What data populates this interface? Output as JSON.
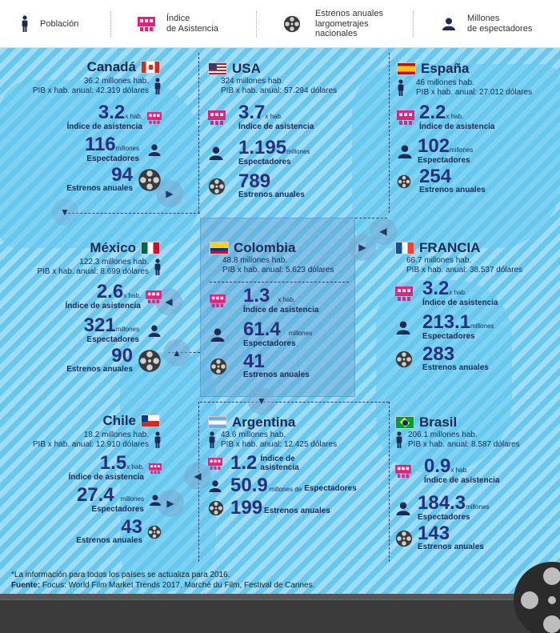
{
  "legend": {
    "population": "Población",
    "attendance_line1": "Índice",
    "attendance_line2": "de Asistencia",
    "releases_line1": "Estrenos anuales",
    "releases_line2": "largometrajes",
    "releases_line3": "nacionales",
    "viewers_line1": "Millones",
    "viewers_line2": "de espectadores"
  },
  "units": {
    "millones": "millones",
    "xhab": "x hab.",
    "indice": "Índice de asistencia",
    "espectadores": "Espectadores",
    "estrenos": "Estrenos anuales"
  },
  "countries": {
    "canada": {
      "name": "Canadá",
      "pop": "36.2 millones hab.",
      "pib": "PIB x hab. anual: 42.319 dólares",
      "att": "3.2",
      "viewers": "116",
      "releases": "94"
    },
    "usa": {
      "name": "USA",
      "pop": "324 millones hab.",
      "pib": "PIB x hab. anual: 57.294 dólares",
      "att": "3.7",
      "viewers": "1.195",
      "releases": "789"
    },
    "espana": {
      "name": "España",
      "pop": "46 millones hab.",
      "pib": "PIB x hab. anual: 27.012 dólares",
      "att": "2.2",
      "viewers": "102",
      "releases": "254"
    },
    "mexico": {
      "name": "México",
      "pop": "122.3 millones hab.",
      "pib": "PIB x hab. anual: 8.699 dólares",
      "att": "2.6",
      "viewers": "321",
      "releases": "90"
    },
    "colombia": {
      "name": "Colombia",
      "pop": "48.8 millones hab.",
      "pib": "PIB x hab. anual: 5.623 dólares",
      "att": "1.3",
      "viewers": "61.4",
      "releases": "41"
    },
    "francia": {
      "name": "FRANCIA",
      "pop": "66.7 millones hab.",
      "pib": "PIB x hab. anual: 38.537 dólares",
      "att": "3.2",
      "viewers": "213.1",
      "releases": "283"
    },
    "chile": {
      "name": "Chile",
      "pop": "18.2 millones hab.",
      "pib": "PIB x hab. anual: 12.910 dólares",
      "att": "1.5",
      "viewers": "27.4",
      "releases": "43"
    },
    "argentina": {
      "name": "Argentina",
      "pop": "43.6 millones hab.",
      "pib": "PIB x hab. anual: 12.425 dólares",
      "att": "1.2",
      "viewers": "50.9",
      "releases": "199",
      "millones_de": "millones de"
    },
    "brasil": {
      "name": "Brasil",
      "pop": "206.1 millones hab.",
      "pib": "PIB x hab. anual: 8.587 dólares",
      "att": "0.9",
      "viewers": "184.3",
      "releases": "143"
    }
  },
  "footer": {
    "note": "*La información para todos los países se actualiza para 2016.",
    "source_label": "Fuente:",
    "source_text": " Focus: World Film Market Trends 2017. Marché du Film, Festival de Cannes."
  },
  "colors": {
    "ocean": "#66c8ef",
    "accent": "#e8207a",
    "text": "#1e2a52",
    "number": "#2a2f7c",
    "bottom": "#3b3b3b"
  },
  "icons": [
    "person-icon",
    "cinema-seats-icon",
    "film-reel-icon",
    "viewer-icon",
    "chevron-icon"
  ]
}
